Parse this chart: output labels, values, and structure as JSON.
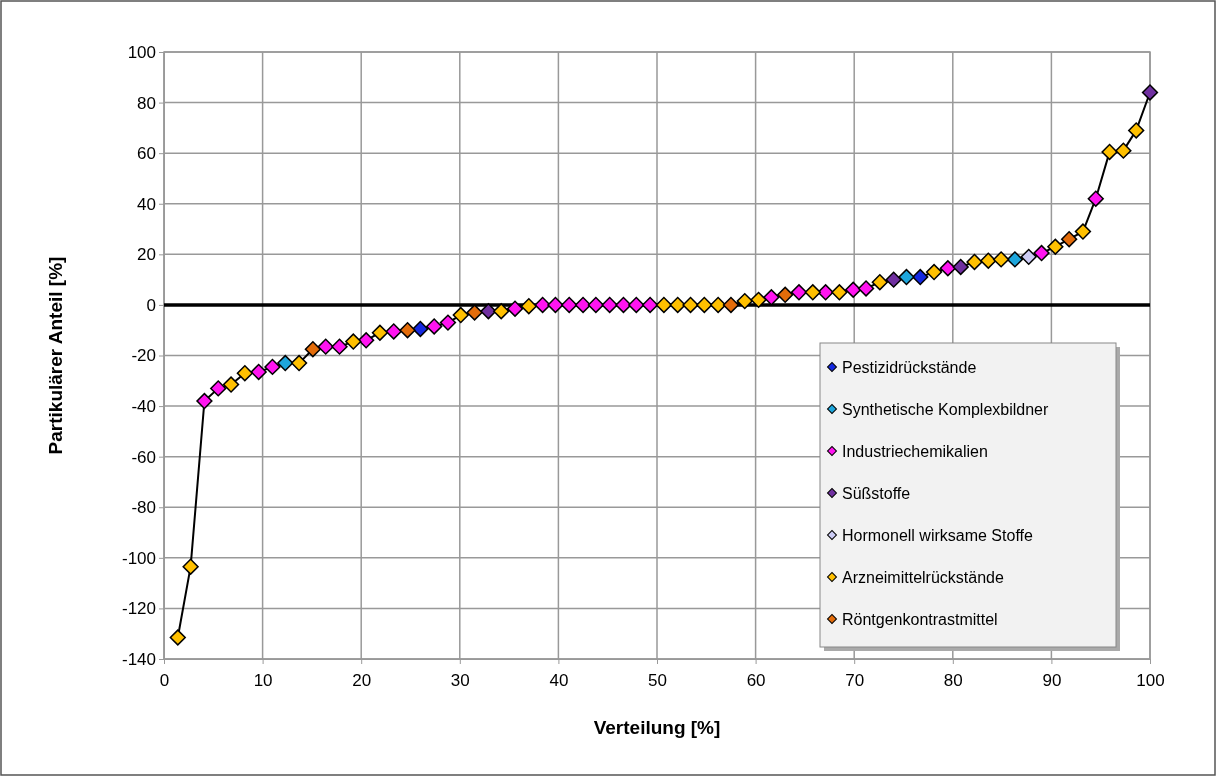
{
  "chart_data": {
    "type": "scatter",
    "xlabel": "Verteilung [%]",
    "ylabel": "Partikulärer Anteil [%]",
    "xlim": [
      0,
      100
    ],
    "xticks": [
      0,
      10,
      20,
      30,
      40,
      50,
      60,
      70,
      80,
      90,
      100
    ],
    "ylim": [
      -140,
      100
    ],
    "yticks": [
      -140,
      -120,
      -100,
      -80,
      -60,
      -40,
      -20,
      0,
      20,
      40,
      60,
      80,
      100
    ],
    "grid": true,
    "legend": "bottom right",
    "marker": "diamond",
    "ref_lines": [
      {
        "axis": "y",
        "value": 0,
        "color": "#000000"
      }
    ],
    "series": [
      {
        "type": "line",
        "marker": "none",
        "color": "#000000",
        "x": [
          1.4,
          2.7,
          4.1,
          5.5,
          6.8,
          8.2,
          9.6,
          11.0,
          12.3,
          13.7,
          15.1,
          16.4,
          17.8,
          19.2,
          20.5,
          21.9,
          23.3,
          24.7,
          26.0,
          27.4,
          28.8,
          30.1,
          31.5,
          32.9,
          34.2,
          35.6,
          37.0,
          38.4,
          39.7,
          41.1,
          42.5,
          43.8,
          45.2,
          46.6,
          47.9,
          49.3,
          50.7,
          52.1,
          53.4,
          54.8,
          56.2,
          57.5,
          58.9,
          60.3,
          61.6,
          63.0,
          64.4,
          65.8,
          67.1,
          68.5,
          69.9,
          71.2,
          72.6,
          74.0,
          75.3,
          76.7,
          78.1,
          79.5,
          80.8,
          82.2,
          83.6,
          84.9,
          86.3,
          87.7,
          89.0,
          90.4,
          91.8,
          93.2,
          94.5,
          95.9,
          97.3,
          98.6,
          100
        ],
        "values": [
          -131.5,
          -103.5,
          -38,
          -33,
          -31.5,
          -27,
          -26.5,
          -24.5,
          -23,
          -23,
          -17.5,
          -16.5,
          -16.5,
          -14.5,
          -14,
          -11,
          -10.5,
          -10,
          -9.5,
          -8.5,
          -7,
          -4,
          -3,
          -2.5,
          -2.5,
          -1.5,
          -0.5,
          0,
          0,
          0,
          0,
          0,
          0,
          0,
          0,
          0,
          0,
          0,
          0,
          0,
          0,
          0,
          1.5,
          2,
          3,
          4,
          5,
          5,
          5,
          5,
          6,
          6.5,
          9,
          10,
          11,
          11,
          13,
          14.5,
          15,
          17,
          17.5,
          18,
          18,
          19,
          20.5,
          23,
          26,
          29,
          42,
          60.5,
          61,
          69,
          84
        ]
      },
      {
        "name": "Pestizidrückstände",
        "color": "#1428e0",
        "x": [
          26.0,
          76.7
        ],
        "values": [
          -9.5,
          11
        ]
      },
      {
        "name": "Synthetische Komplexbildner",
        "color": "#1ea6dc",
        "x": [
          12.3,
          75.3,
          86.3
        ],
        "values": [
          -23,
          11,
          18
        ]
      },
      {
        "name": "Industriechemikalien",
        "color": "#ff14f0",
        "x": [
          4.1,
          5.5,
          9.6,
          11.0,
          16.4,
          17.8,
          20.5,
          23.3,
          27.4,
          28.8,
          35.6,
          38.4,
          39.7,
          41.1,
          42.5,
          43.8,
          45.2,
          46.6,
          47.9,
          49.3,
          61.6,
          64.4,
          67.1,
          69.9,
          71.2,
          79.5,
          89.0,
          94.5
        ],
        "values": [
          -38,
          -33,
          -26.5,
          -24.5,
          -16.5,
          -16.5,
          -14,
          -10.5,
          -8.5,
          -7,
          -1.5,
          0,
          0,
          0,
          0,
          0,
          0,
          0,
          0,
          0,
          3,
          5,
          5,
          6,
          6.5,
          14.5,
          20.5,
          42
        ]
      },
      {
        "name": "Süßstoffe",
        "color": "#7030a0",
        "x": [
          32.9,
          74.0,
          80.8,
          100
        ],
        "values": [
          -2.5,
          10,
          15,
          84
        ]
      },
      {
        "name": "Hormonell wirksame Stoffe",
        "color": "#ccccf5",
        "x": [
          87.7
        ],
        "values": [
          19
        ]
      },
      {
        "name": "Arzneimittelrückstände",
        "color": "#ffc000",
        "x": [
          1.4,
          2.7,
          6.8,
          8.2,
          13.7,
          19.2,
          21.9,
          30.1,
          34.2,
          37.0,
          50.7,
          52.1,
          53.4,
          54.8,
          56.2,
          58.9,
          60.3,
          65.8,
          68.5,
          72.6,
          78.1,
          82.2,
          83.6,
          84.9,
          90.4,
          93.2,
          95.9,
          97.3,
          98.6
        ],
        "values": [
          -131.5,
          -103.5,
          -31.5,
          -27,
          -23,
          -14.5,
          -11,
          -4,
          -2.5,
          -0.5,
          0,
          0,
          0,
          0,
          0,
          1.5,
          2,
          5,
          5,
          9,
          13,
          17,
          17.5,
          18,
          23,
          29,
          60.5,
          61,
          69
        ]
      },
      {
        "name": "Röntgenkontrastmittel",
        "color": "#e36c0a",
        "x": [
          15.1,
          24.7,
          31.5,
          57.5,
          63.0,
          91.8
        ],
        "values": [
          -17.5,
          -10,
          -3,
          0,
          4,
          26
        ]
      }
    ]
  }
}
